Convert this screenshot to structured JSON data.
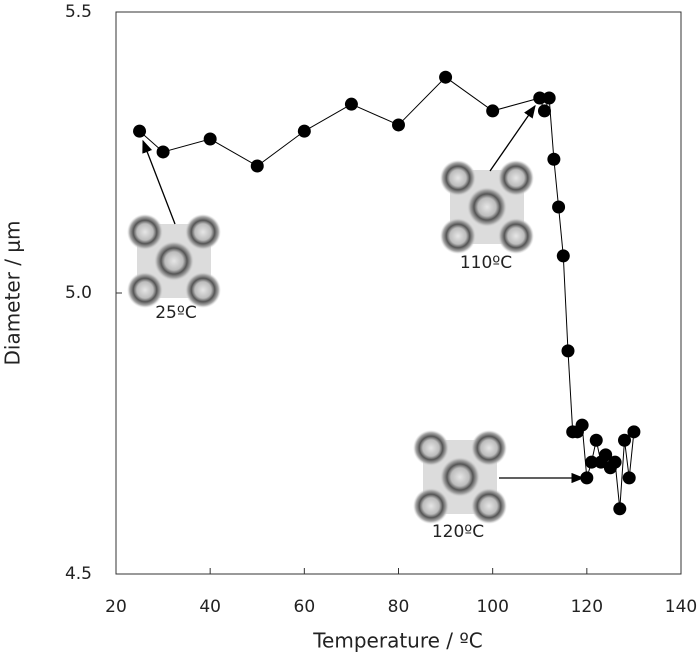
{
  "chart_data": {
    "type": "line",
    "x_label": "Temperature / ºC",
    "y_label": "Diameter / μm",
    "x": [
      25,
      30,
      40,
      50,
      60,
      70,
      80,
      90,
      100,
      110,
      111,
      112,
      113,
      114,
      115,
      116,
      117,
      118,
      119,
      120,
      121,
      122,
      123,
      124,
      125,
      126,
      127,
      128,
      129,
      130
    ],
    "values": [
      5.288,
      5.251,
      5.274,
      5.226,
      5.288,
      5.336,
      5.299,
      5.384,
      5.324,
      5.347,
      5.324,
      5.347,
      5.238,
      5.153,
      5.066,
      4.897,
      4.753,
      4.753,
      4.765,
      4.671,
      4.699,
      4.738,
      4.699,
      4.712,
      4.689,
      4.699,
      4.616,
      4.738,
      4.671,
      4.753
    ],
    "color": "#000000",
    "xlim": [
      20,
      140
    ],
    "xticks": [
      20,
      40,
      60,
      80,
      100,
      120,
      140
    ],
    "ylim": [
      4.5,
      5.5
    ],
    "yticks": [
      {
        "value": 4.5,
        "label": "4.5"
      },
      {
        "value": 5.0,
        "label": "5.0"
      },
      {
        "value": 5.5,
        "label": "5.5"
      }
    ],
    "annotations": [
      "25ºC",
      "110ºC",
      "120ºC"
    ]
  }
}
